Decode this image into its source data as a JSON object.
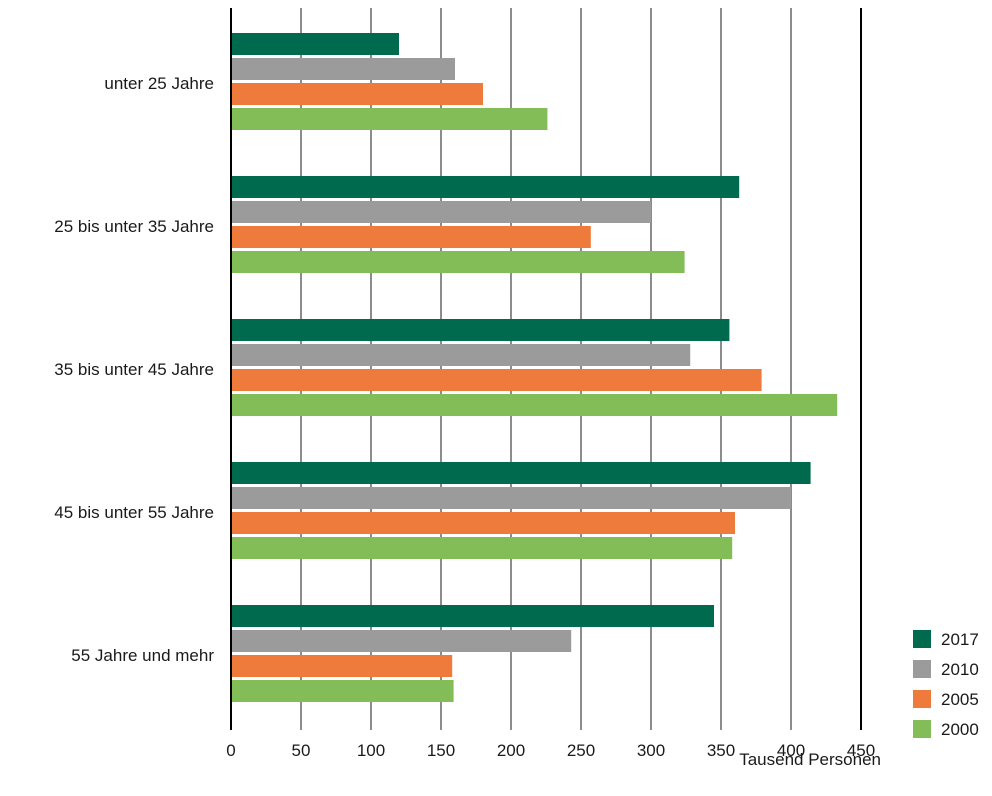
{
  "chart_data": {
    "type": "bar",
    "orientation": "horizontal",
    "categories": [
      "unter 25 Jahre",
      "25 bis unter 35 Jahre",
      "35 bis unter 45 Jahre",
      "45 bis unter 55 Jahre",
      "55 Jahre und mehr"
    ],
    "series": [
      {
        "name": "2017",
        "color": "#006a4e",
        "values": [
          120,
          363,
          356,
          414,
          345
        ]
      },
      {
        "name": "2010",
        "color": "#9b9b9b",
        "values": [
          160,
          300,
          328,
          400,
          243
        ]
      },
      {
        "name": "2005",
        "color": "#ee7a3b",
        "values": [
          180,
          257,
          379,
          360,
          158
        ]
      },
      {
        "name": "2000",
        "color": "#82bd57",
        "values": [
          226,
          324,
          433,
          358,
          159
        ]
      }
    ],
    "xlim": [
      0,
      450
    ],
    "xticks": [
      0,
      50,
      100,
      150,
      200,
      250,
      300,
      350,
      400,
      450
    ],
    "xlabel": "Tausend Personen",
    "ylabel": "",
    "title": "",
    "grid": true,
    "legend_position": "bottom-right",
    "legend_order": [
      "2017",
      "2010",
      "2005",
      "2000"
    ]
  }
}
